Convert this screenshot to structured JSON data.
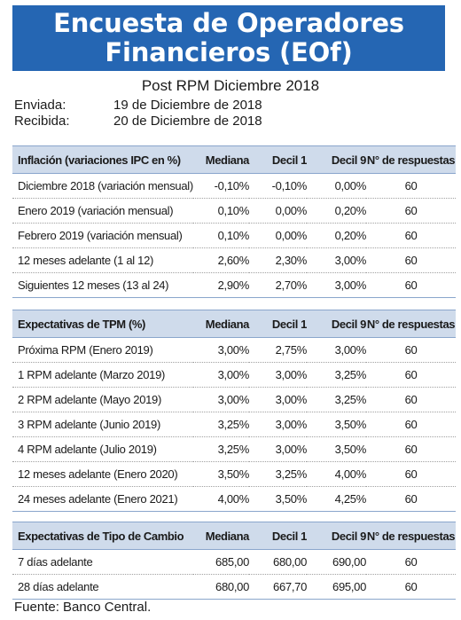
{
  "header": {
    "title_line1": "Encuesta de Operadores",
    "title_line2": "Financieros (EOf)",
    "subtitle": "Post RPM Diciembre 2018"
  },
  "meta": {
    "sent_label": "Enviada:",
    "sent_value": "19 de Diciembre de 2018",
    "received_label": "Recibida:",
    "received_value": "20 de Diciembre de 2018"
  },
  "table_inflation": {
    "headers": [
      "Inflación (variaciones IPC en %)",
      "Mediana",
      "Decil 1",
      "Decil 9",
      "N° de respuestas"
    ],
    "rows": [
      [
        "Diciembre 2018 (variación mensual)",
        "-0,10%",
        "-0,10%",
        "0,00%",
        "60"
      ],
      [
        "Enero 2019 (variación mensual)",
        "0,10%",
        "0,00%",
        "0,20%",
        "60"
      ],
      [
        "Febrero 2019 (variación mensual)",
        "0,10%",
        "0,00%",
        "0,20%",
        "60"
      ],
      [
        "12 meses adelante (1 al 12)",
        "2,60%",
        "2,30%",
        "3,00%",
        "60"
      ],
      [
        "Siguientes 12 meses (13 al 24)",
        "2,90%",
        "2,70%",
        "3,00%",
        "60"
      ]
    ]
  },
  "table_tpm": {
    "headers": [
      "Expectativas de TPM (%)",
      "Mediana",
      "Decil 1",
      "Decil 9",
      "N° de respuestas"
    ],
    "rows": [
      [
        "Próxima  RPM  (Enero 2019)",
        "3,00%",
        "2,75%",
        "3,00%",
        "60"
      ],
      [
        "1 RPM adelante  (Marzo 2019)",
        "3,00%",
        "3,00%",
        "3,25%",
        "60"
      ],
      [
        "2 RPM adelante  (Mayo 2019)",
        "3,00%",
        "3,00%",
        "3,25%",
        "60"
      ],
      [
        "3 RPM adelante  (Junio 2019)",
        "3,25%",
        "3,00%",
        "3,50%",
        "60"
      ],
      [
        "4 RPM adelante  (Julio 2019)",
        "3,25%",
        "3,00%",
        "3,50%",
        "60"
      ],
      [
        "12 meses adelante  (Enero 2020)",
        "3,50%",
        "3,25%",
        "4,00%",
        "60"
      ],
      [
        "24 meses adelante  (Enero 2021)",
        "4,00%",
        "3,50%",
        "4,25%",
        "60"
      ]
    ]
  },
  "table_fx": {
    "headers": [
      "Expectativas de Tipo de Cambio",
      "Mediana",
      "Decil 1",
      "Decil 9",
      "N° de respuestas"
    ],
    "rows": [
      [
        "7 días adelante",
        "685,00",
        "680,00",
        "690,00",
        "60"
      ],
      [
        "28 días adelante",
        "680,00",
        "667,70",
        "695,00",
        "60"
      ]
    ]
  },
  "footer": {
    "source": "Fuente: Banco Central."
  },
  "colors": {
    "banner_bg": "#2566b3",
    "header_row_bg": "#cfdbeb"
  }
}
